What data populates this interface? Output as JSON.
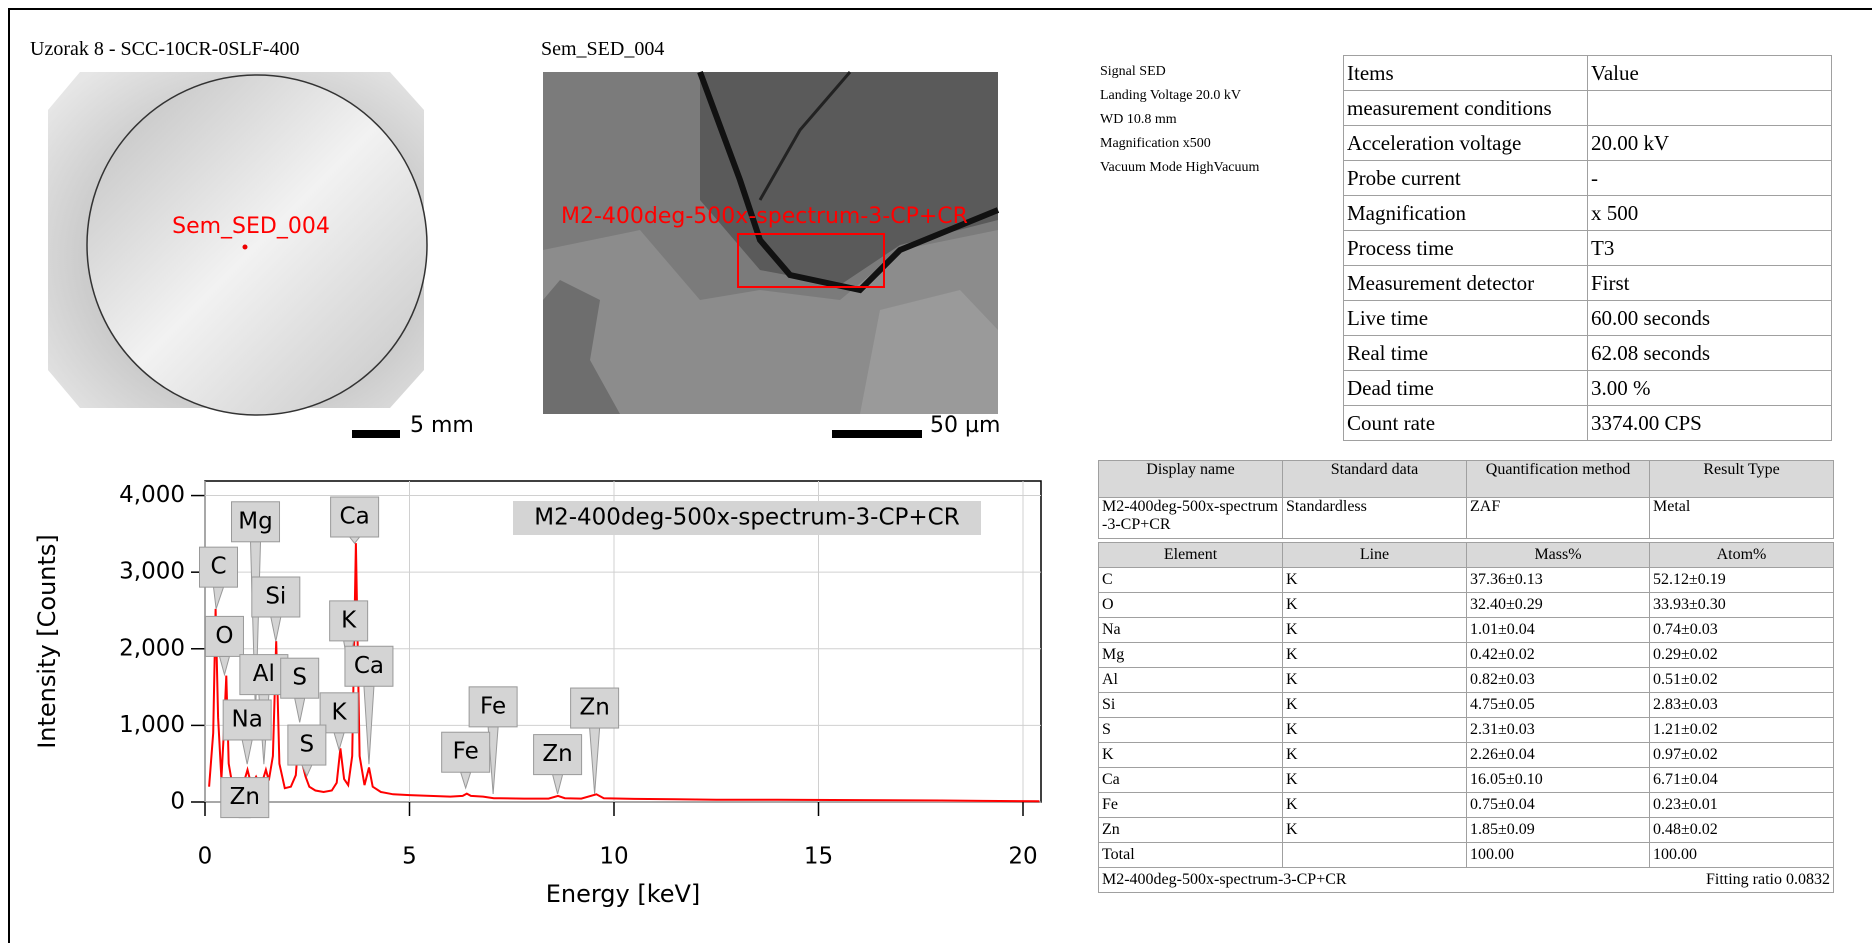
{
  "sample_title": "Uzorak 8 - SCC-10CR-0SLF-400",
  "sem_title": "Sem_SED_004",
  "wafer_label": "Sem_SED_004",
  "wafer_scale": "5 mm",
  "sem_overlay": "M2-400deg-500x-spectrum-3-CP+CR",
  "sem_scale": "50 µm",
  "conditions": [
    "Signal SED",
    "Landing Voltage 20.0 kV",
    "WD 10.8 mm",
    "Magnification x500",
    "Vacuum Mode HighVacuum"
  ],
  "items_table": {
    "header": [
      "Items",
      "Value"
    ],
    "rows": [
      [
        "measurement conditions"
      ],
      [
        "Acceleration voltage",
        "20.00 kV"
      ],
      [
        "Probe current",
        "-"
      ],
      [
        "Magnification",
        "x 500"
      ],
      [
        "Process time",
        "T3"
      ],
      [
        "Measurement detector",
        "First"
      ],
      [
        "Live time",
        "60.00 seconds"
      ],
      [
        "Real time",
        "62.08 seconds"
      ],
      [
        "Dead time",
        "3.00 %"
      ],
      [
        "Count rate",
        "3374.00 CPS"
      ]
    ]
  },
  "quant_table": {
    "header": [
      "Display name",
      "Standard data",
      "Quantification method",
      "Result Type"
    ],
    "info": [
      "M2-400deg-500x-spectrum-3-CP+CR",
      "Standardless",
      "ZAF",
      "Metal"
    ],
    "element_header": [
      "Element",
      "Line",
      "Mass%",
      "Atom%"
    ],
    "rows": [
      [
        "C",
        "K",
        "37.36±0.13",
        "52.12±0.19"
      ],
      [
        "O",
        "K",
        "32.40±0.29",
        "33.93±0.30"
      ],
      [
        "Na",
        "K",
        "1.01±0.04",
        "0.74±0.03"
      ],
      [
        "Mg",
        "K",
        "0.42±0.02",
        "0.29±0.02"
      ],
      [
        "Al",
        "K",
        "0.82±0.03",
        "0.51±0.02"
      ],
      [
        "Si",
        "K",
        "4.75±0.05",
        "2.83±0.03"
      ],
      [
        "S",
        "K",
        "2.31±0.03",
        "1.21±0.02"
      ],
      [
        "K",
        "K",
        "2.26±0.04",
        "0.97±0.02"
      ],
      [
        "Ca",
        "K",
        "16.05±0.10",
        "6.71±0.04"
      ],
      [
        "Fe",
        "K",
        "0.75±0.04",
        "0.23±0.01"
      ],
      [
        "Zn",
        "K",
        "1.85±0.09",
        "0.48±0.02"
      ]
    ],
    "total": {
      "label": "Total",
      "mass": "100.00",
      "atom": "100.00"
    },
    "footer": {
      "name": "M2-400deg-500x-spectrum-3-CP+CR",
      "fitting": "Fitting ratio 0.0832"
    }
  },
  "chart_data": {
    "type": "line",
    "x_label": "Energy [keV]",
    "y_label": "Intensity [Counts]",
    "x": [
      0.1,
      0.2,
      0.26,
      0.32,
      0.4,
      0.46,
      0.52,
      0.58,
      0.66,
      0.8,
      0.95,
      1.04,
      1.12,
      1.2,
      1.25,
      1.32,
      1.42,
      1.49,
      1.56,
      1.66,
      1.74,
      1.82,
      1.95,
      2.1,
      2.22,
      2.31,
      2.38,
      2.46,
      2.55,
      2.7,
      2.9,
      3.1,
      3.22,
      3.31,
      3.4,
      3.5,
      3.6,
      3.69,
      3.78,
      3.9,
      4.01,
      4.1,
      4.3,
      4.6,
      5,
      5.5,
      6,
      6.3,
      6.4,
      6.5,
      6.8,
      7.06,
      7.2,
      7.8,
      8.4,
      8.63,
      8.8,
      9.2,
      9.57,
      9.75,
      10.5,
      11.5,
      12.5,
      14,
      16,
      18,
      19,
      20.4
    ],
    "series": [
      {
        "name": "M2-400deg-500x-spectrum-3-CP+CR",
        "color": "#ff0000",
        "values": [
          200,
          900,
          2520,
          1100,
          300,
          900,
          1650,
          500,
          250,
          300,
          260,
          420,
          250,
          280,
          330,
          250,
          300,
          420,
          280,
          600,
          2100,
          500,
          180,
          200,
          350,
          1000,
          500,
          330,
          200,
          150,
          130,
          150,
          250,
          700,
          300,
          220,
          600,
          3380,
          600,
          220,
          450,
          200,
          130,
          100,
          90,
          80,
          70,
          80,
          110,
          80,
          70,
          50,
          50,
          45,
          45,
          80,
          50,
          45,
          100,
          50,
          40,
          35,
          30,
          30,
          25,
          20,
          15,
          10
        ]
      }
    ],
    "xlim": [
      0,
      20.44
    ],
    "ylim": [
      0,
      4190
    ],
    "xticks": [
      0,
      5,
      10,
      15,
      20
    ],
    "yticks": [
      0,
      {
        "value": 1000,
        "label": "1,000"
      },
      {
        "value": 2000,
        "label": "2,000"
      },
      {
        "value": 3000,
        "label": "3,000"
      },
      {
        "value": 4000,
        "label": "4,000"
      }
    ],
    "grid": true,
    "peak_labels": [
      "C",
      "Mg",
      "Ca",
      "Si",
      "O",
      "K",
      "Ca",
      "Al",
      "S",
      "Na",
      "K",
      "S",
      "Fe",
      "Fe",
      "Zn",
      "Zn",
      "Zn"
    ]
  }
}
